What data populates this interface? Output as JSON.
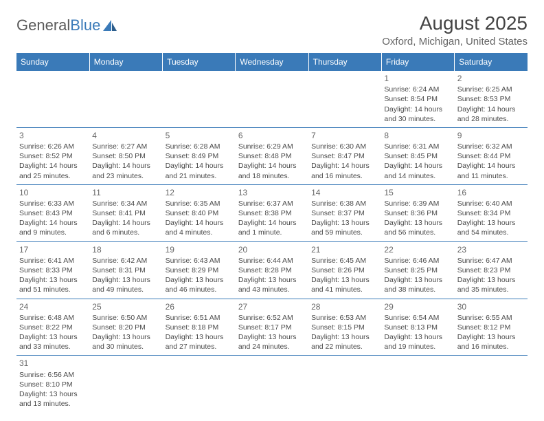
{
  "logo": {
    "text1": "General",
    "text2": "Blue"
  },
  "header": {
    "month_title": "August 2025",
    "location": "Oxford, Michigan, United States"
  },
  "colors": {
    "header_bg": "#3a7ab8",
    "header_text": "#ffffff",
    "border": "#3a7ab8",
    "body_text": "#4a4a4a",
    "daynum": "#666666"
  },
  "day_headers": [
    "Sunday",
    "Monday",
    "Tuesday",
    "Wednesday",
    "Thursday",
    "Friday",
    "Saturday"
  ],
  "weeks": [
    [
      null,
      null,
      null,
      null,
      null,
      {
        "n": "1",
        "sunrise": "6:24 AM",
        "sunset": "8:54 PM",
        "daylight": "14 hours and 30 minutes."
      },
      {
        "n": "2",
        "sunrise": "6:25 AM",
        "sunset": "8:53 PM",
        "daylight": "14 hours and 28 minutes."
      }
    ],
    [
      {
        "n": "3",
        "sunrise": "6:26 AM",
        "sunset": "8:52 PM",
        "daylight": "14 hours and 25 minutes."
      },
      {
        "n": "4",
        "sunrise": "6:27 AM",
        "sunset": "8:50 PM",
        "daylight": "14 hours and 23 minutes."
      },
      {
        "n": "5",
        "sunrise": "6:28 AM",
        "sunset": "8:49 PM",
        "daylight": "14 hours and 21 minutes."
      },
      {
        "n": "6",
        "sunrise": "6:29 AM",
        "sunset": "8:48 PM",
        "daylight": "14 hours and 18 minutes."
      },
      {
        "n": "7",
        "sunrise": "6:30 AM",
        "sunset": "8:47 PM",
        "daylight": "14 hours and 16 minutes."
      },
      {
        "n": "8",
        "sunrise": "6:31 AM",
        "sunset": "8:45 PM",
        "daylight": "14 hours and 14 minutes."
      },
      {
        "n": "9",
        "sunrise": "6:32 AM",
        "sunset": "8:44 PM",
        "daylight": "14 hours and 11 minutes."
      }
    ],
    [
      {
        "n": "10",
        "sunrise": "6:33 AM",
        "sunset": "8:43 PM",
        "daylight": "14 hours and 9 minutes."
      },
      {
        "n": "11",
        "sunrise": "6:34 AM",
        "sunset": "8:41 PM",
        "daylight": "14 hours and 6 minutes."
      },
      {
        "n": "12",
        "sunrise": "6:35 AM",
        "sunset": "8:40 PM",
        "daylight": "14 hours and 4 minutes."
      },
      {
        "n": "13",
        "sunrise": "6:37 AM",
        "sunset": "8:38 PM",
        "daylight": "14 hours and 1 minute."
      },
      {
        "n": "14",
        "sunrise": "6:38 AM",
        "sunset": "8:37 PM",
        "daylight": "13 hours and 59 minutes."
      },
      {
        "n": "15",
        "sunrise": "6:39 AM",
        "sunset": "8:36 PM",
        "daylight": "13 hours and 56 minutes."
      },
      {
        "n": "16",
        "sunrise": "6:40 AM",
        "sunset": "8:34 PM",
        "daylight": "13 hours and 54 minutes."
      }
    ],
    [
      {
        "n": "17",
        "sunrise": "6:41 AM",
        "sunset": "8:33 PM",
        "daylight": "13 hours and 51 minutes."
      },
      {
        "n": "18",
        "sunrise": "6:42 AM",
        "sunset": "8:31 PM",
        "daylight": "13 hours and 49 minutes."
      },
      {
        "n": "19",
        "sunrise": "6:43 AM",
        "sunset": "8:29 PM",
        "daylight": "13 hours and 46 minutes."
      },
      {
        "n": "20",
        "sunrise": "6:44 AM",
        "sunset": "8:28 PM",
        "daylight": "13 hours and 43 minutes."
      },
      {
        "n": "21",
        "sunrise": "6:45 AM",
        "sunset": "8:26 PM",
        "daylight": "13 hours and 41 minutes."
      },
      {
        "n": "22",
        "sunrise": "6:46 AM",
        "sunset": "8:25 PM",
        "daylight": "13 hours and 38 minutes."
      },
      {
        "n": "23",
        "sunrise": "6:47 AM",
        "sunset": "8:23 PM",
        "daylight": "13 hours and 35 minutes."
      }
    ],
    [
      {
        "n": "24",
        "sunrise": "6:48 AM",
        "sunset": "8:22 PM",
        "daylight": "13 hours and 33 minutes."
      },
      {
        "n": "25",
        "sunrise": "6:50 AM",
        "sunset": "8:20 PM",
        "daylight": "13 hours and 30 minutes."
      },
      {
        "n": "26",
        "sunrise": "6:51 AM",
        "sunset": "8:18 PM",
        "daylight": "13 hours and 27 minutes."
      },
      {
        "n": "27",
        "sunrise": "6:52 AM",
        "sunset": "8:17 PM",
        "daylight": "13 hours and 24 minutes."
      },
      {
        "n": "28",
        "sunrise": "6:53 AM",
        "sunset": "8:15 PM",
        "daylight": "13 hours and 22 minutes."
      },
      {
        "n": "29",
        "sunrise": "6:54 AM",
        "sunset": "8:13 PM",
        "daylight": "13 hours and 19 minutes."
      },
      {
        "n": "30",
        "sunrise": "6:55 AM",
        "sunset": "8:12 PM",
        "daylight": "13 hours and 16 minutes."
      }
    ],
    [
      {
        "n": "31",
        "sunrise": "6:56 AM",
        "sunset": "8:10 PM",
        "daylight": "13 hours and 13 minutes."
      },
      null,
      null,
      null,
      null,
      null,
      null
    ]
  ],
  "labels": {
    "sunrise_prefix": "Sunrise: ",
    "sunset_prefix": "Sunset: ",
    "daylight_prefix": "Daylight: "
  }
}
